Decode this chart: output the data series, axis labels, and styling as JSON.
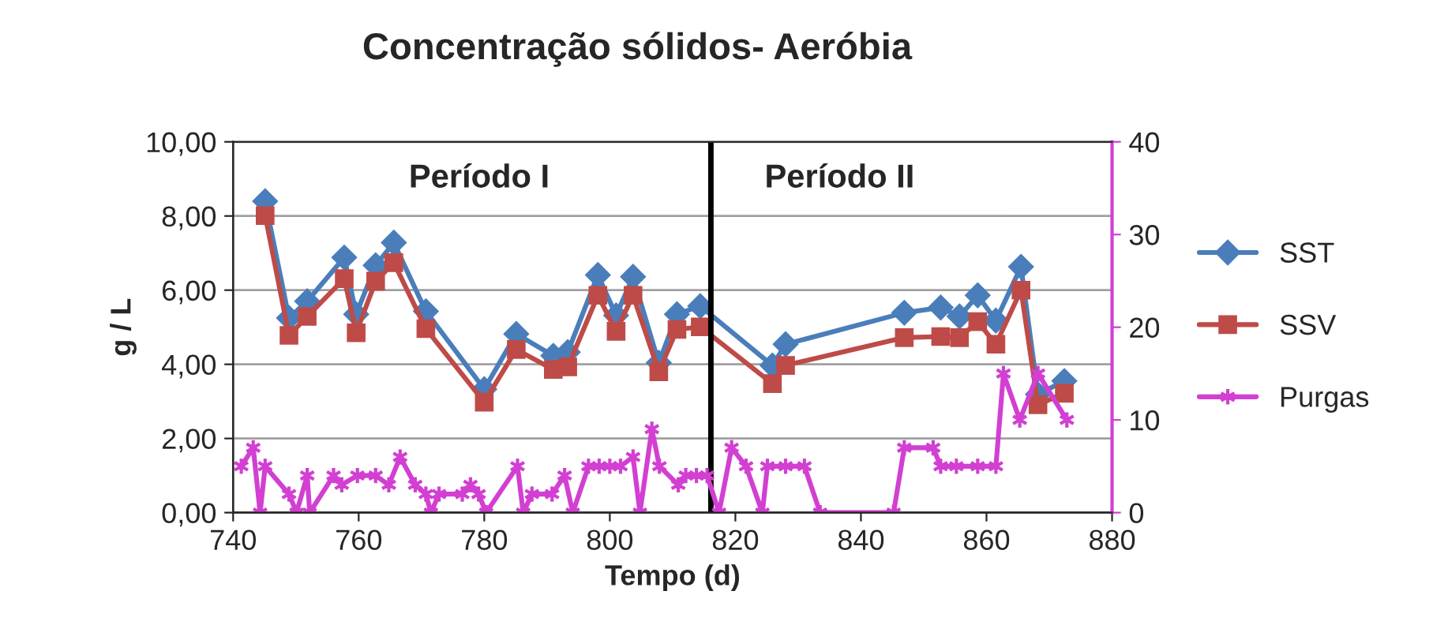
{
  "chart_data": {
    "type": "line",
    "title": "Concentração sólidos- Aeróbia",
    "xlabel": "Tempo (d)",
    "ylabel": "g / L",
    "xlim": [
      740,
      880
    ],
    "xticks": [
      740,
      760,
      780,
      800,
      820,
      840,
      860,
      880
    ],
    "ylim": [
      0,
      10
    ],
    "yticks": [
      {
        "value": 0,
        "label": "0,00"
      },
      {
        "value": 2,
        "label": "2,00"
      },
      {
        "value": 4,
        "label": "4,00"
      },
      {
        "value": 6,
        "label": "6,00"
      },
      {
        "value": 8,
        "label": "8,00"
      },
      {
        "value": 10,
        "label": "10,00"
      }
    ],
    "y2lim": [
      0,
      40
    ],
    "y2ticks": [
      0,
      10,
      20,
      30,
      40
    ],
    "grid": "y",
    "legend": "right",
    "series": [
      {
        "name": "SST",
        "color": "#4a7ebb",
        "marker": "diamond",
        "x": [
          745.1,
          748.9,
          751.8,
          757.7,
          759.6,
          762.7,
          765.6,
          770.7,
          780.0,
          785.1,
          791.0,
          793.3,
          798.1,
          801.0,
          803.7,
          807.8,
          810.7,
          814.4,
          825.9,
          828.0,
          846.9,
          852.7,
          855.7,
          858.6,
          861.5,
          865.5,
          868.2,
          872.4
        ],
        "values": [
          8.4,
          5.25,
          5.7,
          6.88,
          5.35,
          6.67,
          7.28,
          5.43,
          3.33,
          4.82,
          4.23,
          4.33,
          6.41,
          5.32,
          6.36,
          4.04,
          5.35,
          5.57,
          3.97,
          4.54,
          5.39,
          5.53,
          5.29,
          5.86,
          5.18,
          6.63,
          3.19,
          3.55
        ]
      },
      {
        "name": "SSV",
        "color": "#be4b48",
        "marker": "square",
        "x": [
          745.1,
          748.9,
          751.8,
          757.7,
          759.6,
          762.7,
          765.6,
          770.7,
          780.0,
          785.1,
          791.0,
          793.3,
          798.1,
          801.0,
          803.7,
          807.8,
          810.7,
          814.4,
          825.9,
          828.0,
          846.9,
          852.7,
          855.7,
          858.6,
          861.5,
          865.5,
          868.2,
          872.4
        ],
        "values": [
          8.01,
          4.78,
          5.29,
          6.31,
          4.85,
          6.24,
          6.74,
          4.96,
          2.98,
          4.4,
          3.86,
          3.93,
          5.86,
          4.89,
          5.86,
          3.8,
          4.94,
          5.01,
          3.48,
          3.97,
          4.72,
          4.75,
          4.72,
          5.15,
          4.54,
          6.0,
          2.91,
          3.22
        ]
      },
      {
        "name": "Purgas",
        "color": "#d23fd2",
        "marker": "cross",
        "axis": "y2",
        "x": [
          741.3,
          743.2,
          744.3,
          745.1,
          748.9,
          750.1,
          751.8,
          752.2,
          756.0,
          757.3,
          759.8,
          762.7,
          764.8,
          766.6,
          769.0,
          770.7,
          771.5,
          772.8,
          776.5,
          777.8,
          779.1,
          780.3,
          785.3,
          786.2,
          787.6,
          790.8,
          792.8,
          794.1,
          796.6,
          798.3,
          800.0,
          801.7,
          803.7,
          804.8,
          806.7,
          807.9,
          810.9,
          812.1,
          813.8,
          815.5,
          817.4,
          819.4,
          821.7,
          824.3,
          825.1,
          828.0,
          831.0,
          833.5,
          845.2,
          846.9,
          851.5,
          852.7,
          855.2,
          858.6,
          861.5,
          862.7,
          865.3,
          868.2,
          872.8
        ],
        "values": [
          5,
          7,
          0,
          5,
          2,
          0,
          4,
          0,
          4,
          3,
          4,
          4,
          3,
          6,
          3,
          2,
          0,
          2,
          2,
          3,
          2,
          0,
          5,
          0,
          2,
          2,
          4,
          0,
          5,
          5,
          5,
          5,
          6,
          0,
          9,
          5,
          3,
          4,
          4,
          4,
          0,
          7,
          5,
          0,
          5,
          5,
          5,
          0,
          0,
          7,
          7,
          5,
          5,
          5,
          5,
          15,
          10,
          15,
          10
        ]
      }
    ],
    "ref_lines": [
      {
        "axis": "x",
        "value": 816.1,
        "color": "#000000",
        "line_style": "solid"
      }
    ],
    "annotations": [
      "Período I",
      "Período II"
    ]
  }
}
